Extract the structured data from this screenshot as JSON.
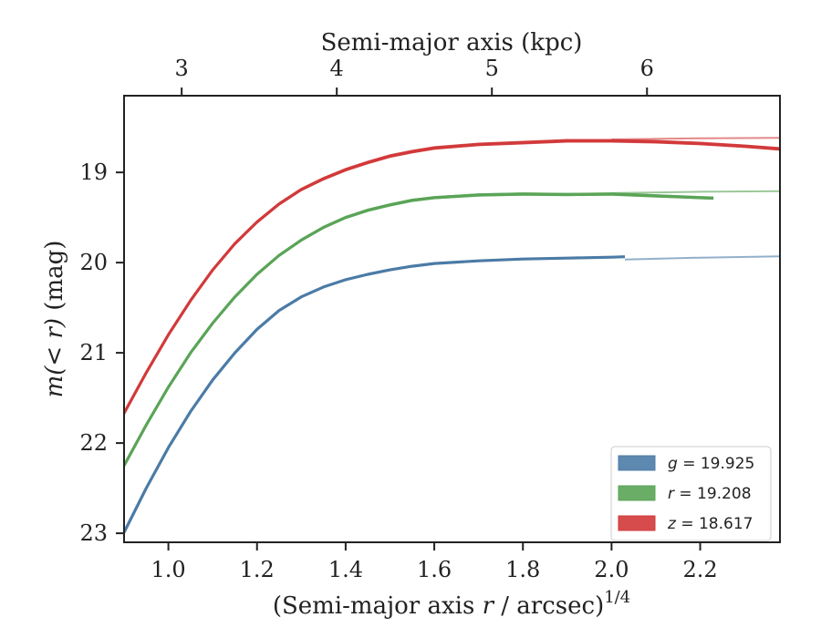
{
  "chart_data": {
    "type": "line",
    "xlabel": "(Semi-major axis r / arcsec)",
    "xlabel_var": "r",
    "xlabel_pre": "(Semi-major axis ",
    "xlabel_post": " / arcsec)",
    "xlabel_exponent": "1/4",
    "x2label": "Semi-major axis (kpc)",
    "ylabel": "m(< r) (mag)",
    "ylabel_math": "m(< r)",
    "ylabel_unit": " (mag)",
    "xlim": [
      0.9,
      2.38
    ],
    "ylim": [
      23.1,
      18.15
    ],
    "y_inverted": true,
    "xticks": [
      1.0,
      1.2,
      1.4,
      1.6,
      1.8,
      2.0,
      2.2
    ],
    "xtick_labels": [
      "1.0",
      "1.2",
      "1.4",
      "1.6",
      "1.8",
      "2.0",
      "2.2"
    ],
    "yticks": [
      19,
      20,
      21,
      22,
      23
    ],
    "ytick_labels": [
      "19",
      "20",
      "21",
      "22",
      "23"
    ],
    "top_axis": {
      "label": "Semi-major axis (kpc)",
      "ticks": [
        {
          "x": 1.03,
          "label": "3"
        },
        {
          "x": 1.38,
          "label": "4"
        },
        {
          "x": 1.73,
          "label": "5"
        },
        {
          "x": 2.08,
          "label": "6"
        }
      ]
    },
    "grid": false,
    "legend_position": "bottom-right",
    "series": [
      {
        "name": "g = 19.925",
        "band": "g",
        "value": "19.925",
        "color": "#4b7ba6",
        "measured": [
          [
            0.9,
            22.99
          ],
          [
            0.95,
            22.5
          ],
          [
            1.0,
            22.05
          ],
          [
            1.05,
            21.65
          ],
          [
            1.1,
            21.3
          ],
          [
            1.15,
            21.0
          ],
          [
            1.2,
            20.74
          ],
          [
            1.25,
            20.53
          ],
          [
            1.3,
            20.38
          ],
          [
            1.35,
            20.27
          ],
          [
            1.4,
            20.19
          ],
          [
            1.45,
            20.13
          ],
          [
            1.5,
            20.08
          ],
          [
            1.55,
            20.04
          ],
          [
            1.6,
            20.01
          ],
          [
            1.7,
            19.98
          ],
          [
            1.8,
            19.96
          ],
          [
            1.9,
            19.95
          ],
          [
            2.0,
            19.94
          ],
          [
            2.03,
            19.935
          ]
        ],
        "model": [
          [
            2.03,
            19.965
          ],
          [
            2.2,
            19.945
          ],
          [
            2.38,
            19.93
          ]
        ],
        "band_halfwidth": 0.012
      },
      {
        "name": "r = 19.208",
        "band": "r",
        "value": "19.208",
        "color": "#5aa457",
        "measured": [
          [
            0.9,
            22.25
          ],
          [
            0.95,
            21.8
          ],
          [
            1.0,
            21.38
          ],
          [
            1.05,
            21.0
          ],
          [
            1.1,
            20.67
          ],
          [
            1.15,
            20.38
          ],
          [
            1.2,
            20.13
          ],
          [
            1.25,
            19.92
          ],
          [
            1.3,
            19.75
          ],
          [
            1.35,
            19.61
          ],
          [
            1.4,
            19.5
          ],
          [
            1.45,
            19.42
          ],
          [
            1.5,
            19.36
          ],
          [
            1.55,
            19.31
          ],
          [
            1.6,
            19.28
          ],
          [
            1.7,
            19.25
          ],
          [
            1.8,
            19.24
          ],
          [
            1.9,
            19.245
          ],
          [
            2.0,
            19.24
          ],
          [
            2.1,
            19.26
          ],
          [
            2.2,
            19.28
          ],
          [
            2.23,
            19.285
          ]
        ],
        "model": [
          [
            2.0,
            19.23
          ],
          [
            2.2,
            19.215
          ],
          [
            2.38,
            19.208
          ]
        ],
        "band_halfwidth": 0.018
      },
      {
        "name": "z = 18.617",
        "band": "z",
        "value": "18.617",
        "color": "#d2393a",
        "measured": [
          [
            0.9,
            21.67
          ],
          [
            0.95,
            21.22
          ],
          [
            1.0,
            20.8
          ],
          [
            1.05,
            20.42
          ],
          [
            1.1,
            20.08
          ],
          [
            1.15,
            19.79
          ],
          [
            1.2,
            19.55
          ],
          [
            1.25,
            19.35
          ],
          [
            1.3,
            19.19
          ],
          [
            1.35,
            19.07
          ],
          [
            1.4,
            18.97
          ],
          [
            1.45,
            18.89
          ],
          [
            1.5,
            18.82
          ],
          [
            1.55,
            18.77
          ],
          [
            1.6,
            18.73
          ],
          [
            1.7,
            18.69
          ],
          [
            1.8,
            18.67
          ],
          [
            1.9,
            18.65
          ],
          [
            2.0,
            18.65
          ],
          [
            2.1,
            18.66
          ],
          [
            2.2,
            18.68
          ],
          [
            2.3,
            18.71
          ],
          [
            2.38,
            18.74
          ]
        ],
        "model": [
          [
            2.0,
            18.635
          ],
          [
            2.2,
            18.622
          ],
          [
            2.38,
            18.617
          ]
        ],
        "band_halfwidth": 0.02
      }
    ]
  }
}
